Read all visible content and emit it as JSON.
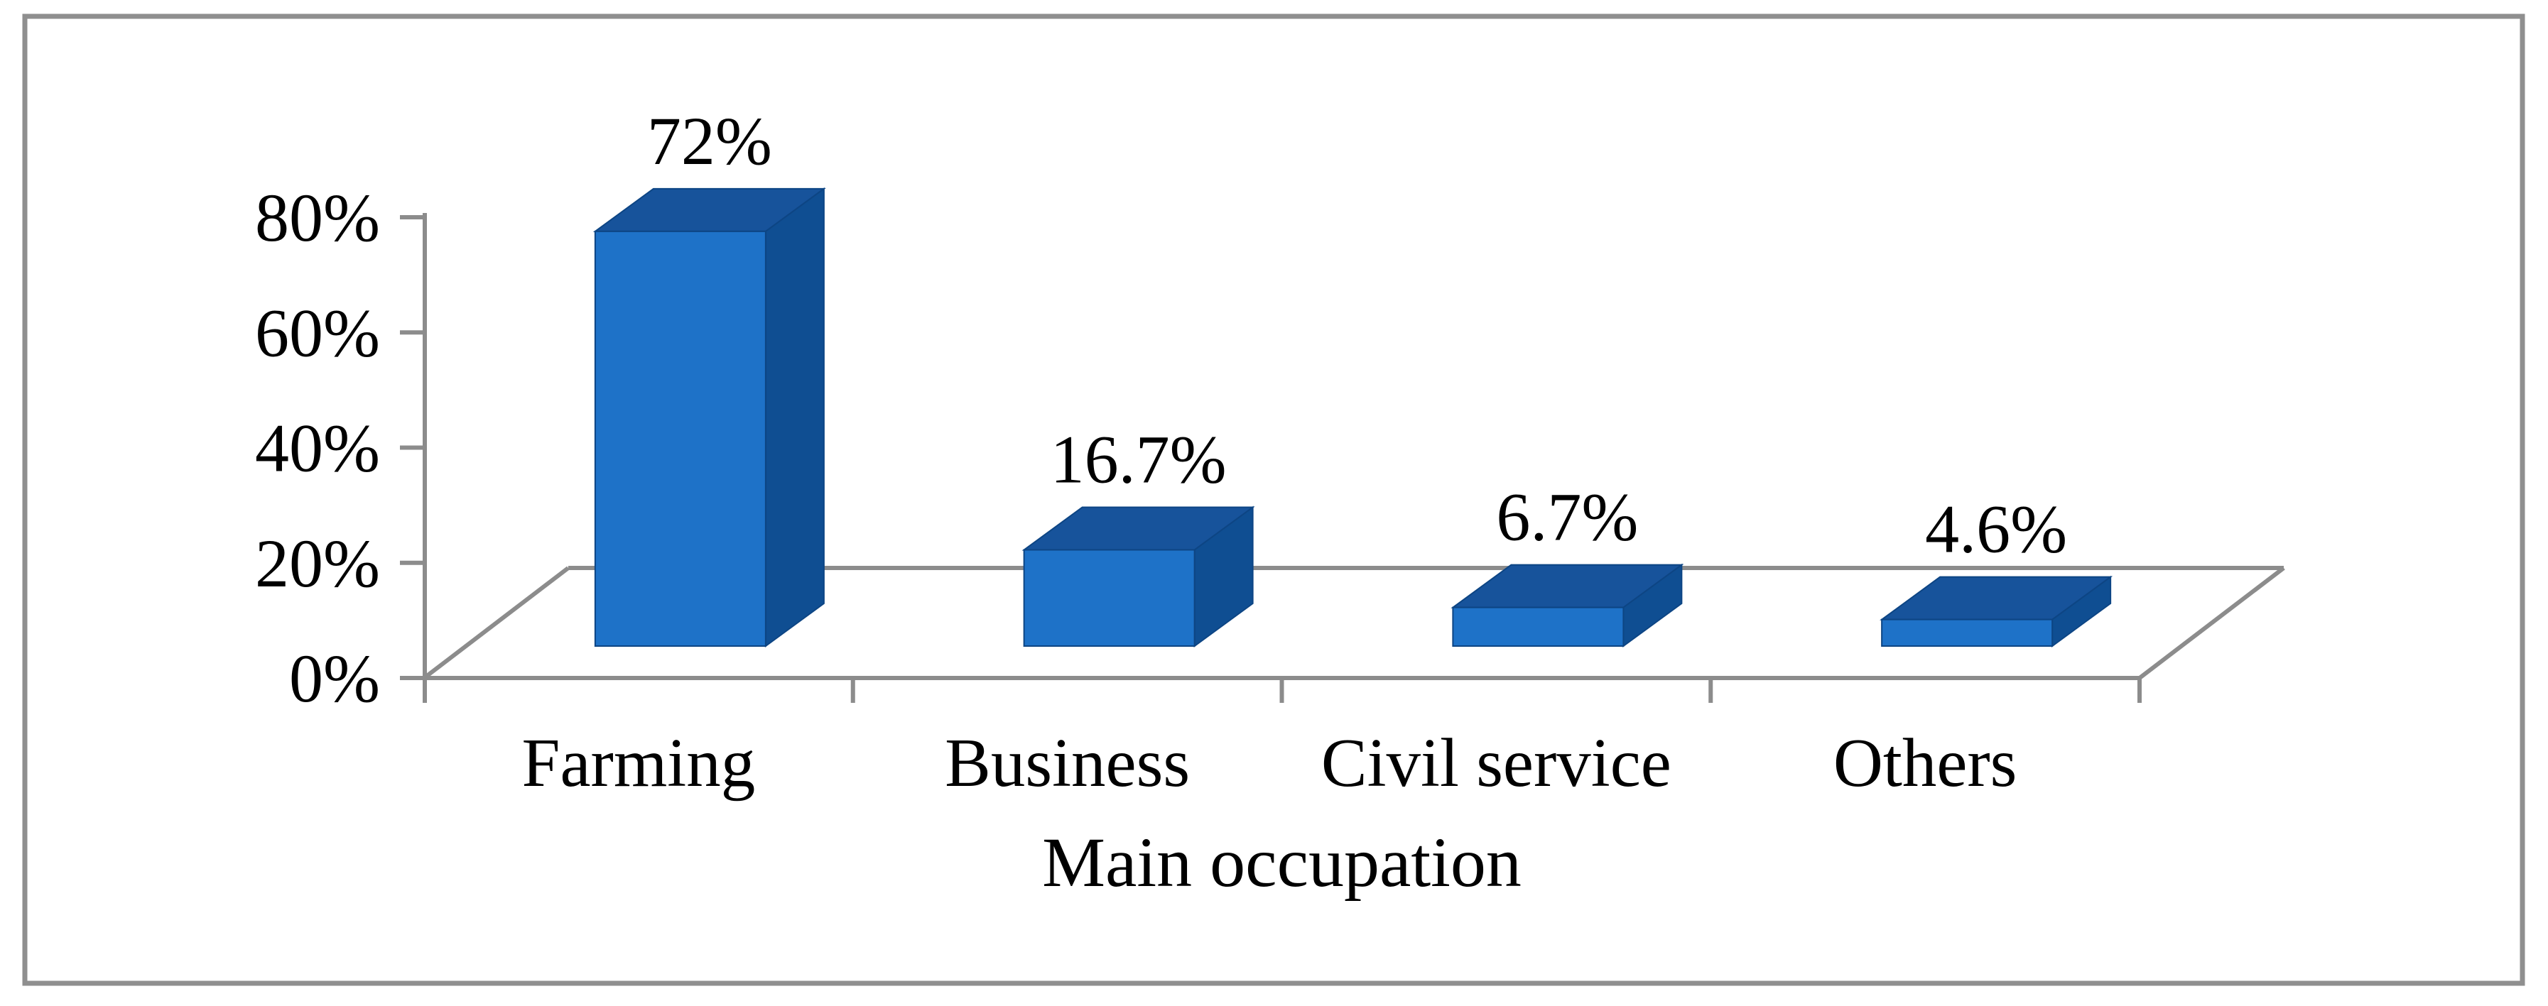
{
  "figure": {
    "background_color": "#ffffff",
    "border_color": "#8f8f8f"
  },
  "chart_data": {
    "type": "bar",
    "variant": "3d-column",
    "title": "",
    "xlabel": "Main occupation",
    "ylabel": "",
    "categories": [
      "Farming",
      "Business",
      "Civil service",
      "Others"
    ],
    "values": [
      72,
      16.7,
      6.7,
      4.6
    ],
    "data_labels": [
      "72%",
      "16.7%",
      "6.7%",
      "4.6%"
    ],
    "y_tick_labels": [
      "0%",
      "20%",
      "40%",
      "60%",
      "80%"
    ],
    "y_tick_values": [
      0,
      20,
      40,
      60,
      80
    ],
    "ylim": [
      0,
      80
    ],
    "grid": false,
    "legend_position": "none",
    "colors": {
      "bar_front": "#1e72c8",
      "bar_top": "#17539b",
      "bar_side": "#0f4e92",
      "bar_edge": "#0d4584",
      "axis_line": "#8c8c8c",
      "text": "#000000",
      "background": "#ffffff"
    }
  }
}
